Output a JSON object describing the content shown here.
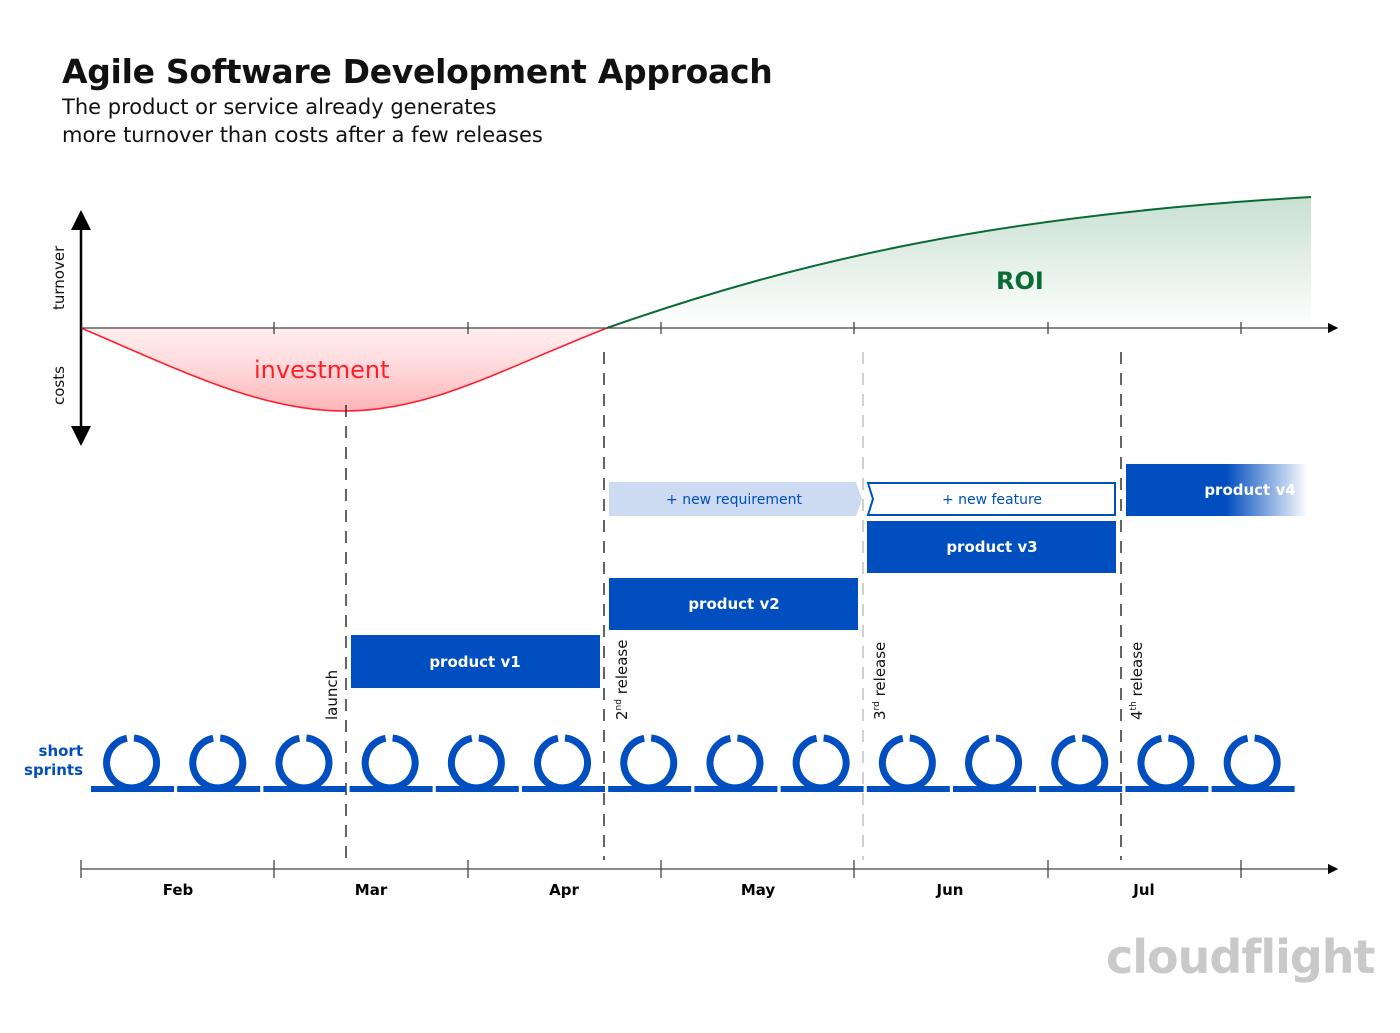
{
  "header": {
    "title": "Agile Software Development Approach",
    "subtitle_line1": "The product or service already generates",
    "subtitle_line2": "more turnover than costs after a few releases"
  },
  "axis": {
    "y_positive": "turnover",
    "y_negative": "costs",
    "months": [
      "Feb",
      "Mar",
      "Apr",
      "May",
      "Jun",
      "Jul"
    ]
  },
  "areas": {
    "investment": "investment",
    "roi": "ROI"
  },
  "milestones": {
    "launch": "launch",
    "release2_num": "2",
    "release2_sup": "nd",
    "release3_num": "3",
    "release3_sup": "rd",
    "release4_num": "4",
    "release4_sup": "th",
    "release_word": "release"
  },
  "boxes": {
    "v1": "product v1",
    "v2": "product v2",
    "v3": "product v3",
    "v4": "product v4",
    "new_requirement": "+ new requirement",
    "new_feature": "+ new feature"
  },
  "sprints": {
    "label_line1": "short",
    "label_line2": "sprints",
    "count": 14
  },
  "logo": "cloudflight",
  "colors": {
    "blue": "#004ebf",
    "light_blue": "#ccdaf2",
    "red": "#ff1f2a",
    "green": "#0a6b35"
  }
}
